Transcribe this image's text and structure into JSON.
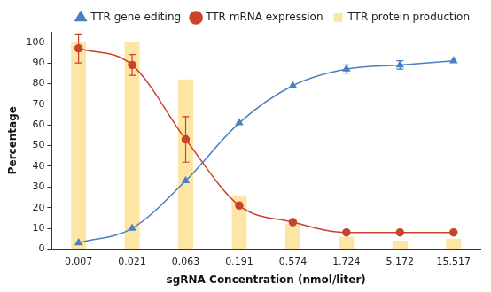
{
  "chart_data": {
    "type": "bar",
    "x_label": "sgRNA Concentration (nmol/liter)",
    "y_label": "Percentage",
    "categories": [
      "0.007",
      "0.021",
      "0.063",
      "0.191",
      "0.574",
      "1.724",
      "5.172",
      "15.517"
    ],
    "ylim": [
      0,
      105
    ],
    "yticks": [
      0,
      10,
      20,
      30,
      40,
      50,
      60,
      70,
      80,
      90,
      100
    ],
    "grid": false,
    "legend": "top",
    "series": [
      {
        "name": "TTR gene editing",
        "type": "line",
        "color": "#4a7fc1",
        "marker": "triangle",
        "line_style": "solid",
        "values": [
          3,
          10,
          33,
          61,
          79,
          87,
          89,
          91
        ],
        "errors": [
          null,
          null,
          null,
          null,
          null,
          2,
          2,
          null
        ]
      },
      {
        "name": "TTR mRNA expression",
        "type": "line",
        "color": "#c9432c",
        "marker": "circle",
        "line_style": "solid",
        "values": [
          97,
          89,
          53,
          21,
          13,
          8,
          8,
          8
        ],
        "errors": [
          7,
          5,
          11,
          null,
          null,
          null,
          null,
          null
        ]
      },
      {
        "name": "TTR protein production",
        "type": "bar",
        "color": "#fde5a3",
        "values": [
          100,
          100,
          82,
          26,
          12,
          6,
          4,
          5
        ]
      }
    ]
  }
}
